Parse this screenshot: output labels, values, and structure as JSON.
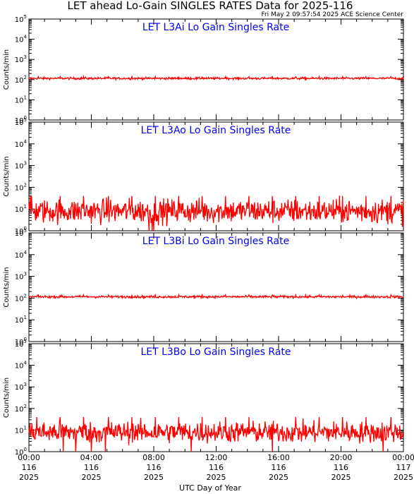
{
  "figure": {
    "title": "LET ahead Lo-Gain SINGLES RATES Data for 2025-116",
    "timestamp": "Fri May  2 09:57:54 2025 ACE Science Center",
    "xlabel": "UTC Day of Year",
    "x_ticks": [
      {
        "time": "00:00",
        "day": "116",
        "year": "2025"
      },
      {
        "time": "04:00",
        "day": "116",
        "year": "2025"
      },
      {
        "time": "08:00",
        "day": "116",
        "year": "2025"
      },
      {
        "time": "12:00",
        "day": "116",
        "year": "2025"
      },
      {
        "time": "16:00",
        "day": "116",
        "year": "2025"
      },
      {
        "time": "20:00",
        "day": "116",
        "year": "2025"
      },
      {
        "time": "00:00",
        "day": "117",
        "year": "2025"
      }
    ]
  },
  "colors": {
    "series": "#ff0000",
    "panel_title": "#0000ff",
    "axes": "#000000",
    "background": "#ffffff"
  },
  "chart_data": [
    {
      "type": "line",
      "title": "LET L3Ai Lo Gain Singles Rate",
      "ylabel": "Counts/min",
      "y_scale": "log",
      "ylim": [
        1,
        100000
      ],
      "y_ticks": [
        1,
        10,
        100,
        1000,
        10000,
        100000
      ],
      "xlim": [
        0,
        24
      ],
      "x_unit": "hours UTC, day 116",
      "series": [
        {
          "baseline": 115,
          "noise_factor": 1.08,
          "spikes": [
            {
              "x": 0.6,
              "y": 140
            },
            {
              "x": 2.0,
              "y": 140
            },
            {
              "x": 3.5,
              "y": 140
            },
            {
              "x": 5.1,
              "y": 140
            },
            {
              "x": 6.6,
              "y": 140
            },
            {
              "x": 8.1,
              "y": 140
            },
            {
              "x": 9.6,
              "y": 140
            },
            {
              "x": 11.1,
              "y": 140
            },
            {
              "x": 12.6,
              "y": 140
            },
            {
              "x": 14.1,
              "y": 140
            },
            {
              "x": 15.6,
              "y": 140
            },
            {
              "x": 17.1,
              "y": 140
            },
            {
              "x": 18.6,
              "y": 140
            },
            {
              "x": 20.1,
              "y": 140
            },
            {
              "x": 21.6,
              "y": 140
            },
            {
              "x": 23.2,
              "y": 140
            }
          ]
        }
      ]
    },
    {
      "type": "line",
      "title": "LET L3Ao Lo Gain Singles Rate",
      "ylabel": "Counts/min",
      "y_scale": "log",
      "ylim": [
        1,
        100000
      ],
      "y_ticks": [
        1,
        10,
        100,
        1000,
        10000,
        100000
      ],
      "xlim": [
        0,
        24
      ],
      "x_unit": "hours UTC, day 116",
      "series": [
        {
          "baseline": 8,
          "noise_factor": 2.2,
          "spikes": [
            {
              "x": 0.15,
              "y": 40
            },
            {
              "x": 2.0,
              "y": 40
            },
            {
              "x": 3.5,
              "y": 40
            },
            {
              "x": 5.1,
              "y": 40
            },
            {
              "x": 6.6,
              "y": 40
            },
            {
              "x": 8.1,
              "y": 40
            },
            {
              "x": 9.6,
              "y": 40
            },
            {
              "x": 11.1,
              "y": 40
            },
            {
              "x": 12.6,
              "y": 40
            },
            {
              "x": 14.1,
              "y": 40
            },
            {
              "x": 15.6,
              "y": 40
            },
            {
              "x": 17.1,
              "y": 40
            },
            {
              "x": 18.6,
              "y": 40
            },
            {
              "x": 20.1,
              "y": 40
            },
            {
              "x": 21.6,
              "y": 40
            },
            {
              "x": 23.2,
              "y": 40
            }
          ],
          "dips": [
            {
              "x": 7.7,
              "y": 1
            },
            {
              "x": 7.9,
              "y": 1
            },
            {
              "x": 8.0,
              "y": 1
            }
          ]
        }
      ]
    },
    {
      "type": "line",
      "title": "LET L3Bi Lo Gain Singles Rate",
      "ylabel": "Counts/min",
      "y_scale": "log",
      "ylim": [
        1,
        100000
      ],
      "y_ticks": [
        1,
        10,
        100,
        1000,
        10000,
        100000
      ],
      "xlim": [
        0,
        24
      ],
      "x_unit": "hours UTC, day 116",
      "series": [
        {
          "baseline": 115,
          "noise_factor": 1.08,
          "spikes": [
            {
              "x": 0.6,
              "y": 140
            },
            {
              "x": 2.0,
              "y": 140
            },
            {
              "x": 3.5,
              "y": 140
            },
            {
              "x": 5.1,
              "y": 140
            },
            {
              "x": 6.6,
              "y": 140
            },
            {
              "x": 8.1,
              "y": 140
            },
            {
              "x": 9.6,
              "y": 140
            },
            {
              "x": 11.1,
              "y": 140
            },
            {
              "x": 12.6,
              "y": 140
            },
            {
              "x": 14.1,
              "y": 140
            },
            {
              "x": 15.6,
              "y": 140
            },
            {
              "x": 17.1,
              "y": 140
            },
            {
              "x": 18.6,
              "y": 140
            },
            {
              "x": 20.1,
              "y": 140
            },
            {
              "x": 21.6,
              "y": 140
            },
            {
              "x": 23.2,
              "y": 140
            }
          ]
        }
      ]
    },
    {
      "type": "line",
      "title": "LET L3Bo Lo Gain Singles Rate",
      "ylabel": "Counts/min",
      "y_scale": "log",
      "ylim": [
        1,
        100000
      ],
      "y_ticks": [
        1,
        10,
        100,
        1000,
        10000,
        100000
      ],
      "xlim": [
        0,
        24
      ],
      "x_unit": "hours UTC, day 116",
      "series": [
        {
          "baseline": 8,
          "noise_factor": 2.0,
          "spikes": [
            {
              "x": 0.5,
              "y": 40
            },
            {
              "x": 2.0,
              "y": 40
            },
            {
              "x": 3.5,
              "y": 40
            },
            {
              "x": 5.1,
              "y": 40
            },
            {
              "x": 6.6,
              "y": 40
            },
            {
              "x": 8.1,
              "y": 40
            },
            {
              "x": 9.6,
              "y": 40
            },
            {
              "x": 11.1,
              "y": 40
            },
            {
              "x": 12.6,
              "y": 40
            },
            {
              "x": 14.1,
              "y": 40
            },
            {
              "x": 15.6,
              "y": 40
            },
            {
              "x": 17.1,
              "y": 40
            },
            {
              "x": 18.6,
              "y": 40
            },
            {
              "x": 20.1,
              "y": 40
            },
            {
              "x": 21.6,
              "y": 40
            },
            {
              "x": 23.2,
              "y": 40
            }
          ],
          "dips": [
            {
              "x": 2.2,
              "y": 1
            },
            {
              "x": 3.0,
              "y": 1
            },
            {
              "x": 4.0,
              "y": 1
            },
            {
              "x": 4.9,
              "y": 1
            },
            {
              "x": 10.4,
              "y": 1
            },
            {
              "x": 15.6,
              "y": 1
            },
            {
              "x": 22.7,
              "y": 1
            }
          ]
        }
      ]
    }
  ]
}
